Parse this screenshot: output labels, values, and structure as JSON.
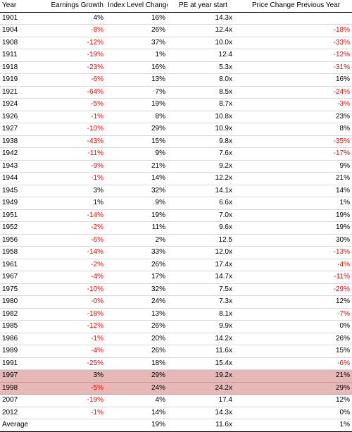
{
  "headers": [
    "Year",
    "Earnings Growth",
    "Index Level Change",
    "PE at year start",
    "Price Change Previous Year"
  ],
  "rows": [
    {
      "year": "1901",
      "earnings": "4%",
      "index": "16%",
      "pe": "14.3x",
      "price": "",
      "highlight": false
    },
    {
      "year": "1904",
      "earnings": "-8%",
      "index": "26%",
      "pe": "12.4x",
      "price": "-18%",
      "highlight": false
    },
    {
      "year": "1908",
      "earnings": "-12%",
      "index": "37%",
      "pe": "10.0x",
      "price": "-33%",
      "highlight": false
    },
    {
      "year": "1911",
      "earnings": "-19%",
      "index": "1%",
      "pe": "12.4",
      "price": "-12%",
      "highlight": false
    },
    {
      "year": "1918",
      "earnings": "-23%",
      "index": "16%",
      "pe": "5.3x",
      "price": "-31%",
      "highlight": false
    },
    {
      "year": "1919",
      "earnings": "-6%",
      "index": "13%",
      "pe": "8.0x",
      "price": "16%",
      "highlight": false
    },
    {
      "year": "1921",
      "earnings": "-64%",
      "index": "7%",
      "pe": "8.5x",
      "price": "-24%",
      "highlight": false
    },
    {
      "year": "1924",
      "earnings": "-5%",
      "index": "19%",
      "pe": "8.7x",
      "price": "-3%",
      "highlight": false
    },
    {
      "year": "1926",
      "earnings": "-1%",
      "index": "8%",
      "pe": "10.8x",
      "price": "23%",
      "highlight": false
    },
    {
      "year": "1927",
      "earnings": "-10%",
      "index": "29%",
      "pe": "10.9x",
      "price": "8%",
      "highlight": false
    },
    {
      "year": "1938",
      "earnings": "-43%",
      "index": "15%",
      "pe": "9.8x",
      "price": "-35%",
      "highlight": false
    },
    {
      "year": "1942",
      "earnings": "-11%",
      "index": "9%",
      "pe": "7.6x",
      "price": "-17%",
      "highlight": false
    },
    {
      "year": "1943",
      "earnings": "-9%",
      "index": "21%",
      "pe": "9.2x",
      "price": "9%",
      "highlight": false
    },
    {
      "year": "1944",
      "earnings": "-1%",
      "index": "14%",
      "pe": "12.2x",
      "price": "21%",
      "highlight": false
    },
    {
      "year": "1945",
      "earnings": "3%",
      "index": "32%",
      "pe": "14.1x",
      "price": "14%",
      "highlight": false
    },
    {
      "year": "1949",
      "earnings": "1%",
      "index": "9%",
      "pe": "6.6x",
      "price": "1%",
      "highlight": false
    },
    {
      "year": "1951",
      "earnings": "-14%",
      "index": "19%",
      "pe": "7.0x",
      "price": "19%",
      "highlight": false
    },
    {
      "year": "1952",
      "earnings": "-2%",
      "index": "11%",
      "pe": "9.6x",
      "price": "19%",
      "highlight": false
    },
    {
      "year": "1956",
      "earnings": "-6%",
      "index": "2%",
      "pe": "12.5",
      "price": "30%",
      "highlight": false
    },
    {
      "year": "1958",
      "earnings": "-14%",
      "index": "33%",
      "pe": "12.0x",
      "price": "-13%",
      "highlight": false
    },
    {
      "year": "1961",
      "earnings": "-2%",
      "index": "26%",
      "pe": "17.4x",
      "price": "-4%",
      "highlight": false
    },
    {
      "year": "1967",
      "earnings": "-4%",
      "index": "17%",
      "pe": "14.7x",
      "price": "-11%",
      "highlight": false
    },
    {
      "year": "1975",
      "earnings": "-10%",
      "index": "32%",
      "pe": "7.5x",
      "price": "-29%",
      "highlight": false
    },
    {
      "year": "1980",
      "earnings": "-0%",
      "index": "24%",
      "pe": "7.3x",
      "price": "12%",
      "highlight": false
    },
    {
      "year": "1982",
      "earnings": "-18%",
      "index": "13%",
      "pe": "8.1x",
      "price": "-7%",
      "highlight": false
    },
    {
      "year": "1985",
      "earnings": "-12%",
      "index": "26%",
      "pe": "9.9x",
      "price": "0%",
      "highlight": false
    },
    {
      "year": "1986",
      "earnings": "-1%",
      "index": "20%",
      "pe": "14.2x",
      "price": "26%",
      "highlight": false
    },
    {
      "year": "1989",
      "earnings": "-4%",
      "index": "26%",
      "pe": "11.6x",
      "price": "15%",
      "highlight": false
    },
    {
      "year": "1991",
      "earnings": "-25%",
      "index": "18%",
      "pe": "15.4x",
      "price": "-6%",
      "highlight": false
    },
    {
      "year": "1997",
      "earnings": "3%",
      "index": "29%",
      "pe": "19.2x",
      "price": "21%",
      "highlight": true
    },
    {
      "year": "1998",
      "earnings": "-5%",
      "index": "24%",
      "pe": "24.2x",
      "price": "29%",
      "highlight": true
    },
    {
      "year": "2007",
      "earnings": "-19%",
      "index": "4%",
      "pe": "17.4",
      "price": "12%",
      "highlight": false
    },
    {
      "year": "2012",
      "earnings": "-1%",
      "index": "14%",
      "pe": "14.3x",
      "price": "0%",
      "highlight": false
    }
  ],
  "footer": {
    "label": "Average",
    "earnings": "",
    "index": "19%",
    "pe": "11.6x",
    "price": "1%"
  },
  "colors": {
    "negative": "#ff0000",
    "highlight_row": "#e6b8b7",
    "text": "#000000",
    "row_divider": "#d9d9d9"
  }
}
